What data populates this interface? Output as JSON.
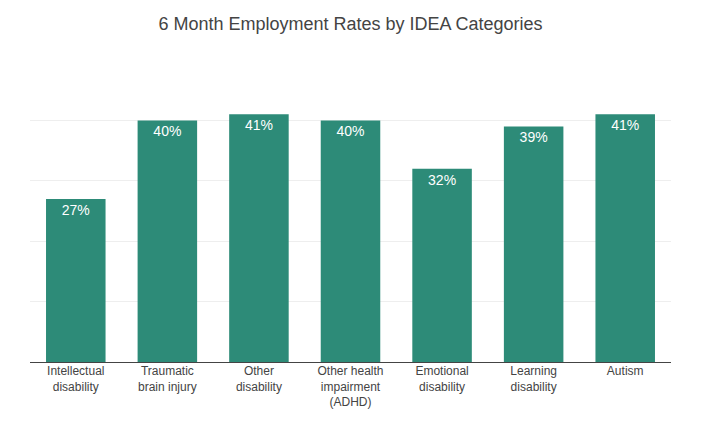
{
  "chart_data": {
    "type": "bar",
    "title": "6 Month Employment Rates by IDEA Categories",
    "categories": [
      "Intellectual\ndisability",
      "Traumatic\nbrain injury",
      "Other\ndisability",
      "Other health\nimpairment\n(ADHD)",
      "Emotional\ndisability",
      "Learning\ndisability",
      "Autism"
    ],
    "values": [
      27,
      40,
      41,
      40,
      32,
      39,
      41
    ],
    "value_labels": [
      "27%",
      "40%",
      "41%",
      "40%",
      "32%",
      "39%",
      "41%"
    ],
    "color": "#2d8b78",
    "ylim": [
      0,
      50
    ],
    "yticks": [
      0,
      10,
      20,
      30,
      40,
      50
    ],
    "grid": true,
    "data_labels": true,
    "tick_labels": "x"
  }
}
